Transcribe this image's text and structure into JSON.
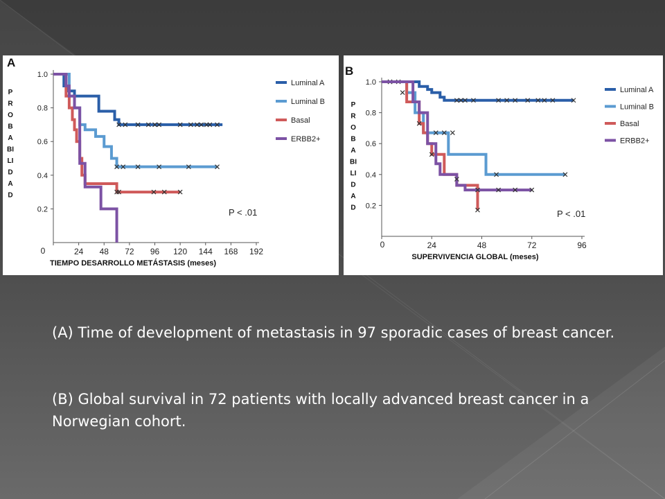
{
  "captions": {
    "a": "(A) Time of development of metastasis in 97 sporadic cases of breast cancer.",
    "b": "(B) Global survival in 72 patients with locally advanced breast cancer  in a Norwegian cohort."
  },
  "chart_data": [
    {
      "type": "line",
      "panel_label": "A",
      "title": "",
      "xlabel": "TIEMPO DESARROLLO METÁSTASIS (meses)",
      "ylabel_letters": [
        "P",
        "R",
        "O",
        "B",
        "A",
        "BI",
        "LI",
        "D",
        "A",
        "D"
      ],
      "xlim": [
        0,
        192
      ],
      "ylim": [
        0,
        1.0
      ],
      "xticks": [
        0,
        24,
        48,
        72,
        96,
        120,
        144,
        168,
        192
      ],
      "xtick_labels": [
        "24",
        "48",
        "72",
        "96",
        "120",
        "144",
        "168",
        "192"
      ],
      "yticks": [
        1.0,
        0.8,
        0.6,
        0.4,
        0.2
      ],
      "ytick_labels": [
        "1.0",
        "0.8",
        "0.6",
        "0.4",
        "0.2"
      ],
      "zero_label": "0",
      "p_value": "P < .01",
      "series": [
        {
          "name": "Luminal A",
          "color": "#2a5ea8",
          "x": [
            0,
            5,
            10,
            13,
            20,
            35,
            43,
            58,
            62,
            160
          ],
          "y": [
            1.0,
            1.0,
            0.93,
            0.9,
            0.87,
            0.87,
            0.78,
            0.73,
            0.7,
            0.7
          ],
          "censored": [
            [
              62,
              0.7
            ],
            [
              68,
              0.7
            ],
            [
              80,
              0.7
            ],
            [
              90,
              0.7
            ],
            [
              96,
              0.7
            ],
            [
              100,
              0.7
            ],
            [
              120,
              0.7
            ],
            [
              130,
              0.7
            ],
            [
              136,
              0.7
            ],
            [
              140,
              0.7
            ],
            [
              145,
              0.7
            ],
            [
              148,
              0.7
            ],
            [
              155,
              0.7
            ]
          ]
        },
        {
          "name": "Luminal B",
          "color": "#5b9bd1",
          "x": [
            0,
            10,
            15,
            20,
            25,
            30,
            40,
            48,
            55,
            60,
            155
          ],
          "y": [
            1.0,
            1.0,
            0.87,
            0.8,
            0.7,
            0.67,
            0.63,
            0.57,
            0.5,
            0.45,
            0.45
          ],
          "censored": [
            [
              60,
              0.45
            ],
            [
              66,
              0.45
            ],
            [
              80,
              0.45
            ],
            [
              100,
              0.45
            ],
            [
              128,
              0.45
            ],
            [
              155,
              0.45
            ]
          ]
        },
        {
          "name": "Basal",
          "color": "#cf5a5a",
          "x": [
            0,
            8,
            12,
            15,
            18,
            20,
            22,
            25,
            27,
            30,
            35,
            40,
            55,
            60,
            120
          ],
          "y": [
            1.0,
            1.0,
            0.87,
            0.8,
            0.73,
            0.67,
            0.6,
            0.5,
            0.4,
            0.35,
            0.35,
            0.35,
            0.35,
            0.3,
            0.3
          ],
          "censored": [
            [
              60,
              0.3
            ],
            [
              62,
              0.3
            ],
            [
              95,
              0.3
            ],
            [
              105,
              0.3
            ],
            [
              120,
              0.3
            ]
          ]
        },
        {
          "name": "ERBB2+",
          "color": "#7c52a4",
          "x": [
            0,
            8,
            12,
            15,
            20,
            25,
            30,
            35,
            40,
            45,
            50,
            57,
            60
          ],
          "y": [
            1.0,
            1.0,
            0.93,
            0.87,
            0.8,
            0.47,
            0.33,
            0.33,
            0.33,
            0.2,
            0.2,
            0.2,
            0.0
          ],
          "censored": []
        }
      ],
      "legend": [
        "Luminal A",
        "Luminal B",
        "Basal",
        "ERBB2+"
      ],
      "legend_position": "top-right"
    },
    {
      "type": "line",
      "panel_label": "B",
      "title": "",
      "xlabel": "SUPERVIVENCIA GLOBAL (meses)",
      "ylabel_letters": [
        "P",
        "R",
        "O",
        "B",
        "A",
        "BI",
        "LI",
        "D",
        "A",
        "D"
      ],
      "xlim": [
        0,
        96
      ],
      "ylim": [
        0,
        1.0
      ],
      "xticks": [
        0,
        24,
        48,
        72,
        96
      ],
      "xtick_labels": [
        "24",
        "48",
        "72",
        "96"
      ],
      "yticks": [
        1.0,
        0.8,
        0.6,
        0.4,
        0.2
      ],
      "ytick_labels": [
        "1.0",
        "0.8",
        "0.6",
        "0.4",
        "0.2"
      ],
      "zero_label": "0",
      "p_value": "P < .01",
      "series": [
        {
          "name": "Luminal A",
          "color": "#2a5ea8",
          "x": [
            0,
            5,
            10,
            18,
            22,
            24,
            28,
            30,
            34,
            36,
            92
          ],
          "y": [
            1.0,
            1.0,
            1.0,
            0.97,
            0.95,
            0.93,
            0.9,
            0.88,
            0.88,
            0.88,
            0.88
          ],
          "censored": [
            [
              4,
              1.0
            ],
            [
              8,
              1.0
            ],
            [
              36,
              0.88
            ],
            [
              38,
              0.88
            ],
            [
              40,
              0.88
            ],
            [
              44,
              0.88
            ],
            [
              56,
              0.88
            ],
            [
              60,
              0.88
            ],
            [
              64,
              0.88
            ],
            [
              70,
              0.88
            ],
            [
              75,
              0.88
            ],
            [
              78,
              0.88
            ],
            [
              82,
              0.88
            ],
            [
              92,
              0.88
            ]
          ]
        },
        {
          "name": "Luminal B",
          "color": "#5b9bd1",
          "x": [
            0,
            8,
            12,
            16,
            20,
            26,
            32,
            40,
            50,
            65,
            88
          ],
          "y": [
            1.0,
            1.0,
            0.93,
            0.8,
            0.67,
            0.67,
            0.53,
            0.53,
            0.4,
            0.4,
            0.4
          ],
          "censored": [
            [
              10,
              0.93
            ],
            [
              26,
              0.67
            ],
            [
              30,
              0.67
            ],
            [
              34,
              0.67
            ],
            [
              55,
              0.4
            ],
            [
              88,
              0.4
            ]
          ]
        },
        {
          "name": "Basal",
          "color": "#cf5a5a",
          "x": [
            0,
            4,
            12,
            18,
            20,
            22,
            24,
            28,
            30,
            36,
            40,
            46
          ],
          "y": [
            1.0,
            1.0,
            0.87,
            0.73,
            0.67,
            0.6,
            0.53,
            0.53,
            0.4,
            0.33,
            0.33,
            0.17
          ],
          "censored": [
            [
              4,
              1.0
            ],
            [
              24,
              0.53
            ],
            [
              46,
              0.17
            ]
          ]
        },
        {
          "name": "ERBB2+",
          "color": "#7c52a4",
          "x": [
            0,
            10,
            15,
            18,
            22,
            26,
            28,
            32,
            36,
            40,
            72
          ],
          "y": [
            1.0,
            1.0,
            0.87,
            0.8,
            0.6,
            0.47,
            0.4,
            0.4,
            0.33,
            0.3,
            0.3
          ],
          "censored": [
            [
              18,
              0.73
            ],
            [
              36,
              0.37
            ],
            [
              46,
              0.3
            ],
            [
              56,
              0.3
            ],
            [
              64,
              0.3
            ],
            [
              72,
              0.3
            ]
          ]
        }
      ],
      "legend": [
        "Luminal A",
        "Luminal B",
        "Basal",
        "ERBB2+"
      ],
      "legend_position": "top-right"
    }
  ]
}
